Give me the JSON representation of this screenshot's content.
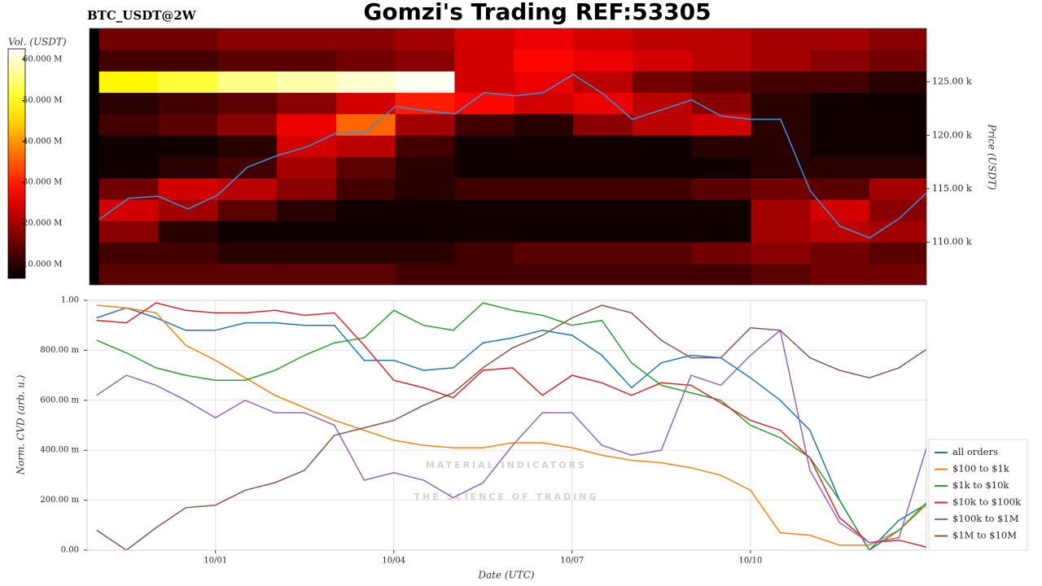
{
  "title": "Gomzi's Trading REF:53305",
  "watermark": {
    "brand": "MATERIAL INDICATORS",
    "tagline": "THE SCIENCE OF TRADING"
  },
  "chart_data": [
    {
      "type": "heatmap",
      "title": "BTC_USDT@2W",
      "ylabel": "Price (USDT)",
      "colormap": "hot",
      "x_bins": [
        -2,
        -1,
        0,
        1,
        2,
        3,
        4,
        5,
        6,
        7,
        8,
        9,
        10,
        11,
        12
      ],
      "y_bins": [
        106000,
        108000,
        110000,
        112000,
        114000,
        116000,
        118000,
        120000,
        122000,
        124000,
        126000,
        128000,
        130000
      ],
      "values": [
        [
          14,
          14,
          14,
          14,
          14,
          12,
          12,
          12,
          12,
          12,
          12,
          14,
          16,
          16
        ],
        [
          12,
          12,
          10,
          10,
          10,
          10,
          12,
          14,
          14,
          14,
          16,
          18,
          16,
          14
        ],
        [
          18,
          10,
          8,
          8,
          8,
          8,
          8,
          8,
          8,
          8,
          8,
          20,
          22,
          20
        ],
        [
          24,
          20,
          14,
          10,
          8,
          8,
          8,
          8,
          8,
          8,
          8,
          20,
          24,
          18
        ],
        [
          16,
          24,
          22,
          18,
          12,
          10,
          12,
          12,
          12,
          12,
          14,
          16,
          14,
          20
        ],
        [
          8,
          10,
          12,
          20,
          14,
          10,
          8,
          8,
          8,
          8,
          8,
          10,
          10,
          10
        ],
        [
          8,
          8,
          10,
          24,
          22,
          12,
          8,
          8,
          8,
          8,
          10,
          10,
          8,
          8
        ],
        [
          12,
          14,
          18,
          26,
          36,
          20,
          12,
          10,
          18,
          22,
          24,
          10,
          8,
          8
        ],
        [
          10,
          12,
          14,
          18,
          24,
          30,
          28,
          24,
          26,
          22,
          18,
          10,
          8,
          8
        ],
        [
          48,
          52,
          56,
          58,
          60,
          62,
          24,
          26,
          22,
          16,
          14,
          12,
          12,
          10
        ],
        [
          12,
          12,
          14,
          14,
          16,
          18,
          24,
          28,
          26,
          24,
          22,
          20,
          18,
          16
        ],
        [
          16,
          16,
          18,
          18,
          18,
          20,
          24,
          26,
          24,
          22,
          22,
          20,
          20,
          18
        ]
      ],
      "colorbar": {
        "label": "Vol. (USDT)",
        "lim": [
          6.6,
          62.6
        ],
        "ticks": [
          {
            "value": 10,
            "label": "10.000 M"
          },
          {
            "value": 20,
            "label": "20.000 M"
          },
          {
            "value": 30,
            "label": "30.000 M"
          },
          {
            "value": 40,
            "label": "40.000 M"
          },
          {
            "value": 50,
            "label": "50.000 M"
          },
          {
            "value": 60,
            "label": "60.000 M"
          }
        ]
      },
      "xlim": [
        -2.16,
        11.96
      ],
      "ylim": [
        106000,
        130000
      ],
      "yticks": [
        {
          "value": 110000,
          "label": "110.00 k"
        },
        {
          "value": 115000,
          "label": "115.00 k"
        },
        {
          "value": 120000,
          "label": "120.00 k"
        },
        {
          "value": 125000,
          "label": "125.00 k"
        }
      ],
      "line": {
        "color": "#3a8fd0",
        "x": [
          -2,
          -1.5,
          -1,
          -0.5,
          0,
          0.5,
          1,
          1.5,
          2,
          2.5,
          3,
          3.5,
          4,
          4.5,
          5,
          5.5,
          6,
          6.5,
          7,
          7.5,
          8,
          8.5,
          9,
          9.5,
          10,
          10.5,
          11,
          11.5,
          12
        ],
        "values": [
          112100,
          114100,
          114300,
          113100,
          114400,
          117000,
          118100,
          118900,
          120200,
          120300,
          122700,
          122300,
          122000,
          124000,
          123700,
          124000,
          125700,
          123900,
          121500,
          122400,
          123300,
          121800,
          121500,
          121500,
          114800,
          111500,
          110400,
          112200,
          114800
        ]
      }
    },
    {
      "type": "line",
      "xlabel": "Date (UTC)",
      "ylabel": "Norm. CVD (arb. u.)",
      "x": [
        -2,
        -1.5,
        -1,
        -0.5,
        0,
        0.5,
        1,
        1.5,
        2,
        2.5,
        3,
        3.5,
        4,
        4.5,
        5,
        5.5,
        6,
        6.5,
        7,
        7.5,
        8,
        8.5,
        9,
        9.5,
        10,
        10.5,
        11,
        11.5,
        12
      ],
      "xlim": [
        -2.16,
        11.96
      ],
      "xticks": [
        {
          "value": 0,
          "label": "10/01"
        },
        {
          "value": 3,
          "label": "10/04"
        },
        {
          "value": 6,
          "label": "10/07"
        },
        {
          "value": 9,
          "label": "10/10"
        }
      ],
      "ylim": [
        0,
        1
      ],
      "yticks": [
        {
          "value": 0,
          "label": "0.00"
        },
        {
          "value": 0.2,
          "label": "200.00 m"
        },
        {
          "value": 0.4,
          "label": "400.00 m"
        },
        {
          "value": 0.6,
          "label": "600.00 m"
        },
        {
          "value": 0.8,
          "label": "800.00 m"
        },
        {
          "value": 1,
          "label": "1.00"
        }
      ],
      "grid": true,
      "legend": "right",
      "series": [
        {
          "name": "all orders",
          "color": "#1f77b4",
          "values": [
            0.93,
            0.97,
            0.93,
            0.88,
            0.88,
            0.91,
            0.91,
            0.9,
            0.9,
            0.76,
            0.76,
            0.72,
            0.73,
            0.83,
            0.85,
            0.88,
            0.86,
            0.78,
            0.65,
            0.75,
            0.78,
            0.77,
            0.69,
            0.6,
            0.48,
            0.2,
            0.0,
            0.12,
            0.19
          ]
        },
        {
          "name": "$100 to $1k",
          "color": "#ff7f0e",
          "values": [
            0.98,
            0.97,
            0.95,
            0.82,
            0.76,
            0.69,
            0.62,
            0.57,
            0.52,
            0.48,
            0.44,
            0.42,
            0.41,
            0.41,
            0.43,
            0.43,
            0.41,
            0.38,
            0.36,
            0.35,
            0.33,
            0.3,
            0.24,
            0.07,
            0.06,
            0.02,
            0.02,
            0.08,
            0.19
          ]
        },
        {
          "name": "$1k to $10k",
          "color": "#2ca02c",
          "values": [
            0.84,
            0.79,
            0.73,
            0.7,
            0.68,
            0.68,
            0.72,
            0.78,
            0.83,
            0.85,
            0.96,
            0.9,
            0.88,
            0.99,
            0.96,
            0.94,
            0.9,
            0.92,
            0.75,
            0.66,
            0.63,
            0.6,
            0.5,
            0.45,
            0.37,
            0.2,
            0.0,
            0.08,
            0.2
          ]
        },
        {
          "name": "$10k to $100k",
          "color": "#d62728",
          "values": [
            0.92,
            0.91,
            0.99,
            0.96,
            0.95,
            0.95,
            0.96,
            0.94,
            0.95,
            0.82,
            0.68,
            0.65,
            0.61,
            0.72,
            0.73,
            0.62,
            0.7,
            0.67,
            0.62,
            0.67,
            0.66,
            0.59,
            0.52,
            0.48,
            0.37,
            0.13,
            0.03,
            0.04,
            0.01
          ]
        },
        {
          "name": "$100k to $1M",
          "color": "#9467bd",
          "values": [
            0.62,
            0.7,
            0.66,
            0.6,
            0.53,
            0.6,
            0.55,
            0.55,
            0.5,
            0.28,
            0.31,
            0.28,
            0.21,
            0.27,
            0.42,
            0.55,
            0.55,
            0.42,
            0.38,
            0.4,
            0.7,
            0.66,
            0.78,
            0.88,
            0.32,
            0.11,
            0.03,
            0.05,
            0.44
          ]
        },
        {
          "name": "$1M to $10M",
          "color": "#8c564b",
          "values": [
            0.08,
            0.0,
            0.09,
            0.17,
            0.18,
            0.24,
            0.27,
            0.32,
            0.46,
            0.49,
            0.52,
            0.58,
            0.63,
            0.73,
            0.81,
            0.86,
            0.93,
            0.98,
            0.95,
            0.84,
            0.77,
            0.77,
            0.89,
            0.88,
            0.77,
            0.72,
            0.69,
            0.73,
            0.81
          ]
        }
      ]
    }
  ]
}
